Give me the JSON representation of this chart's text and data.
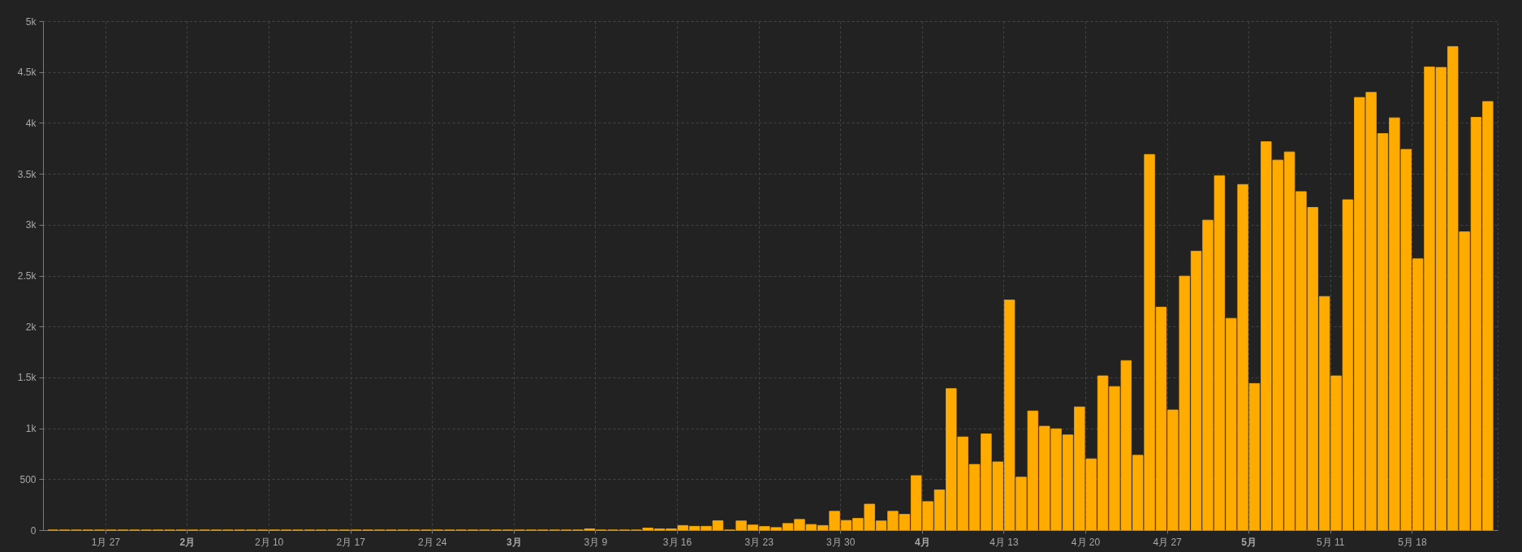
{
  "chart_data": {
    "type": "bar",
    "color": "#ffab00",
    "x": [
      "--01-22",
      "--01-23",
      "--01-24",
      "--01-25",
      "--01-26",
      "--01-27",
      "--01-28",
      "--01-29",
      "--01-30",
      "--01-31",
      "--02-01",
      "--02-02",
      "--02-03",
      "--02-04",
      "--02-05",
      "--02-06",
      "--02-07",
      "--02-08",
      "--02-09",
      "--02-10",
      "--02-11",
      "--02-12",
      "--02-13",
      "--02-14",
      "--02-15",
      "--02-16",
      "--02-17",
      "--02-18",
      "--02-19",
      "--02-20",
      "--02-21",
      "--02-22",
      "--02-23",
      "--02-24",
      "--02-25",
      "--02-26",
      "--02-27",
      "--02-28",
      "--02-29",
      "--03-01",
      "--03-02",
      "--03-03",
      "--03-04",
      "--03-05",
      "--03-06",
      "--03-07",
      "--03-08",
      "--03-09",
      "--03-10",
      "--03-11",
      "--03-12",
      "--03-13",
      "--03-14",
      "--03-15",
      "--03-16",
      "--03-17",
      "--03-18",
      "--03-19",
      "--03-20",
      "--03-21",
      "--03-22",
      "--03-23",
      "--03-24",
      "--03-25",
      "--03-26",
      "--03-27",
      "--03-28",
      "--03-29",
      "--03-30",
      "--03-31",
      "--04-01",
      "--04-02",
      "--04-03",
      "--04-04",
      "--04-05",
      "--04-06",
      "--04-07",
      "--04-08",
      "--04-09",
      "--04-10",
      "--04-11",
      "--04-12",
      "--04-13",
      "--04-14",
      "--04-15",
      "--04-16",
      "--04-17",
      "--04-18",
      "--04-19",
      "--04-20",
      "--04-21",
      "--04-22",
      "--04-23",
      "--04-24",
      "--04-25",
      "--04-26",
      "--04-27",
      "--04-28",
      "--04-29",
      "--04-30",
      "--05-01",
      "--05-02",
      "--05-03",
      "--05-04",
      "--05-05",
      "--05-06",
      "--05-07",
      "--05-08",
      "--05-09",
      "--05-10",
      "--05-11",
      "--05-12",
      "--05-13",
      "--05-14",
      "--05-15",
      "--05-16",
      "--05-17",
      "--05-18",
      "--05-19",
      "--05-20",
      "--05-21",
      "--05-22",
      "--05-23",
      "--05-24"
    ],
    "values": [
      0,
      0,
      0,
      0,
      0,
      0,
      0,
      0,
      0,
      0,
      0,
      0,
      0,
      0,
      0,
      0,
      0,
      0,
      0,
      0,
      0,
      0,
      0,
      0,
      0,
      0,
      0,
      0,
      0,
      0,
      0,
      0,
      0,
      0,
      0,
      0,
      0,
      0,
      0,
      0,
      0,
      0,
      0,
      0,
      0,
      0,
      12,
      0,
      0,
      0,
      0,
      20,
      12,
      12,
      45,
      37,
      37,
      92,
      0,
      90,
      50,
      35,
      25,
      65,
      105,
      55,
      45,
      185,
      95,
      115,
      255,
      90,
      185,
      155,
      535,
      280,
      395,
      1390,
      915,
      645,
      945,
      670,
      2260,
      520,
      1170,
      1020,
      995,
      935,
      1210,
      700,
      1515,
      1410,
      1665,
      735,
      3690,
      2190,
      1180,
      2495,
      2740,
      3045,
      3480,
      2080,
      3395,
      1440,
      3815,
      3635,
      3715,
      3325,
      3170,
      2295,
      1515,
      3245,
      4250,
      4300,
      3895,
      4050,
      3740,
      2665,
      4550,
      4545,
      4750,
      2930,
      4055,
      4210
    ],
    "xlim": [
      "--01-22",
      "--05-25"
    ],
    "xticks": [
      {
        "value": "--01-27",
        "label": "1月 27"
      },
      {
        "value": "--02-03",
        "label": "2月"
      },
      {
        "value": "--02-10",
        "label": "2月 10"
      },
      {
        "value": "--02-17",
        "label": "2月 17"
      },
      {
        "value": "--02-24",
        "label": "2月 24"
      },
      {
        "value": "--03-02",
        "label": "3月"
      },
      {
        "value": "--03-09",
        "label": "3月 9"
      },
      {
        "value": "--03-16",
        "label": "3月 16"
      },
      {
        "value": "--03-23",
        "label": "3月 23"
      },
      {
        "value": "--03-30",
        "label": "3月 30"
      },
      {
        "value": "--04-06",
        "label": "4月"
      },
      {
        "value": "--04-13",
        "label": "4月 13"
      },
      {
        "value": "--04-20",
        "label": "4月 20"
      },
      {
        "value": "--04-27",
        "label": "4月 27"
      },
      {
        "value": "--05-04",
        "label": "5月"
      },
      {
        "value": "--05-11",
        "label": "5月 11"
      },
      {
        "value": "--05-18",
        "label": "5月 18"
      }
    ],
    "ylim": [
      0,
      5000
    ],
    "yticks": [
      0,
      500,
      {
        "value": 1000,
        "label": "1k"
      },
      {
        "value": 1500,
        "label": "1.5k"
      },
      {
        "value": 2000,
        "label": "2k"
      },
      {
        "value": 2500,
        "label": "2.5k"
      },
      {
        "value": 3000,
        "label": "3k"
      },
      {
        "value": 3500,
        "label": "3.5k"
      },
      {
        "value": 4000,
        "label": "4k"
      },
      {
        "value": 4500,
        "label": "4.5k"
      },
      {
        "value": 5000,
        "label": "5k"
      }
    ],
    "grid": true
  }
}
